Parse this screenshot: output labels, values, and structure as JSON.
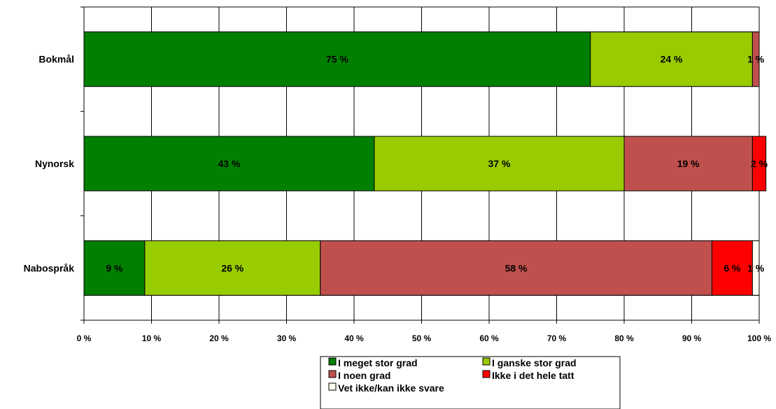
{
  "chart_data": {
    "type": "bar",
    "orientation": "horizontal",
    "stacked": true,
    "categories": [
      "Bokmål",
      "Nynorsk",
      "Nabospråk"
    ],
    "series": [
      {
        "name": "I meget stor grad",
        "values": [
          75,
          43,
          9
        ],
        "labels": [
          "75 %",
          "43 %",
          "9 %"
        ],
        "color": "#007f00"
      },
      {
        "name": "I ganske stor grad",
        "values": [
          24,
          37,
          26
        ],
        "labels": [
          "24 %",
          "37 %",
          "26 %"
        ],
        "color": "#99cc00"
      },
      {
        "name": "I noen grad",
        "values": [
          1,
          19,
          58
        ],
        "labels": [
          "1 %",
          "19 %",
          "58 %"
        ],
        "color": "#c0504d"
      },
      {
        "name": "Ikke i det hele tatt",
        "values": [
          0,
          2,
          6
        ],
        "labels": [
          "",
          "2 %",
          "6 %"
        ],
        "color": "#ff0000"
      },
      {
        "name": "Vet ikke/kan ikke svare",
        "values": [
          0,
          0,
          1
        ],
        "labels": [
          "",
          "",
          "1 %"
        ],
        "color": "#fffbf0"
      }
    ],
    "xlim": [
      0,
      100
    ],
    "xticks": [
      "0 %",
      "10 %",
      "20 %",
      "30 %",
      "40 %",
      "50 %",
      "60 %",
      "70 %",
      "80 %",
      "90 %",
      "100 %"
    ],
    "grid": true,
    "legend_position": "bottom"
  }
}
